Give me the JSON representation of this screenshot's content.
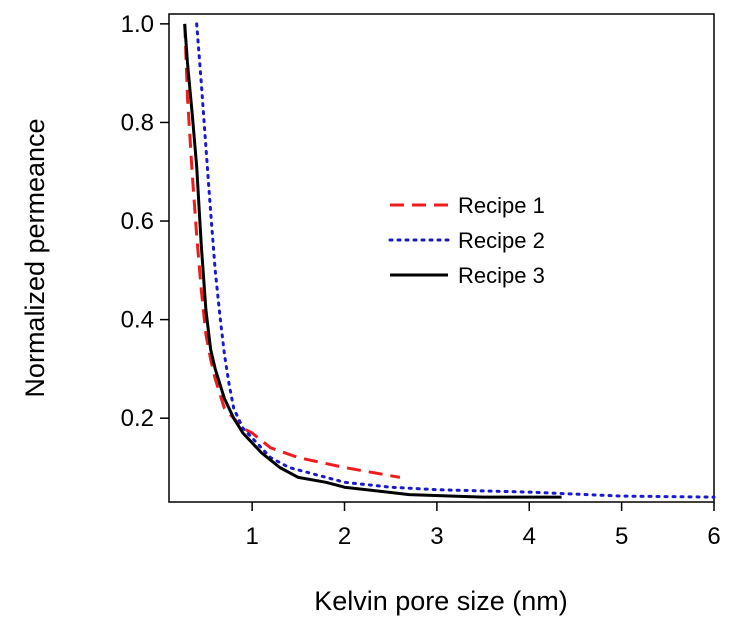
{
  "chart_data": {
    "type": "line",
    "title": "",
    "xlabel": "Kelvin pore size (nm)",
    "ylabel": "Normalized permeance",
    "xlim": [
      0.1,
      6
    ],
    "ylim": [
      0.03,
      1.02
    ],
    "x_ticks": [
      1,
      2,
      3,
      4,
      5,
      6
    ],
    "x_tick_labels": [
      "1",
      "2",
      "3",
      "4",
      "5",
      "6"
    ],
    "y_ticks": [
      0.2,
      0.4,
      0.6,
      0.8,
      1.0
    ],
    "y_tick_labels": [
      "0.2",
      "0.4",
      "0.6",
      "0.8",
      "1.0"
    ],
    "grid": false,
    "legend_position": "center-right",
    "series": [
      {
        "name": "Recipe 1",
        "color": "#ee1c1c",
        "style": "dashed",
        "x": [
          0.27,
          0.3,
          0.35,
          0.4,
          0.45,
          0.5,
          0.55,
          0.6,
          0.7,
          0.8,
          0.9,
          1.0,
          1.2,
          1.5,
          2.0,
          2.6
        ],
        "y": [
          1.0,
          0.85,
          0.7,
          0.57,
          0.46,
          0.37,
          0.32,
          0.28,
          0.22,
          0.2,
          0.18,
          0.17,
          0.14,
          0.12,
          0.1,
          0.08
        ]
      },
      {
        "name": "Recipe 2",
        "color": "#1a1acc",
        "style": "dotted",
        "x": [
          0.4,
          0.45,
          0.5,
          0.55,
          0.6,
          0.65,
          0.7,
          0.75,
          0.8,
          0.85,
          0.9,
          1.0,
          1.2,
          1.4,
          1.7,
          2.0,
          2.5,
          3.0,
          4.0,
          5.0,
          6.0
        ],
        "y": [
          1.0,
          0.88,
          0.75,
          0.62,
          0.5,
          0.41,
          0.33,
          0.27,
          0.22,
          0.2,
          0.18,
          0.16,
          0.12,
          0.1,
          0.085,
          0.07,
          0.06,
          0.055,
          0.05,
          0.042,
          0.04
        ]
      },
      {
        "name": "Recipe 3",
        "color": "#000000",
        "style": "solid",
        "x": [
          0.27,
          0.3,
          0.35,
          0.4,
          0.45,
          0.5,
          0.55,
          0.6,
          0.7,
          0.8,
          0.9,
          1.0,
          1.1,
          1.3,
          1.5,
          1.8,
          2.0,
          2.7,
          3.5,
          4.35
        ],
        "y": [
          1.0,
          0.92,
          0.82,
          0.71,
          0.55,
          0.42,
          0.34,
          0.3,
          0.24,
          0.2,
          0.17,
          0.15,
          0.13,
          0.1,
          0.08,
          0.07,
          0.06,
          0.045,
          0.04,
          0.04
        ]
      }
    ]
  }
}
